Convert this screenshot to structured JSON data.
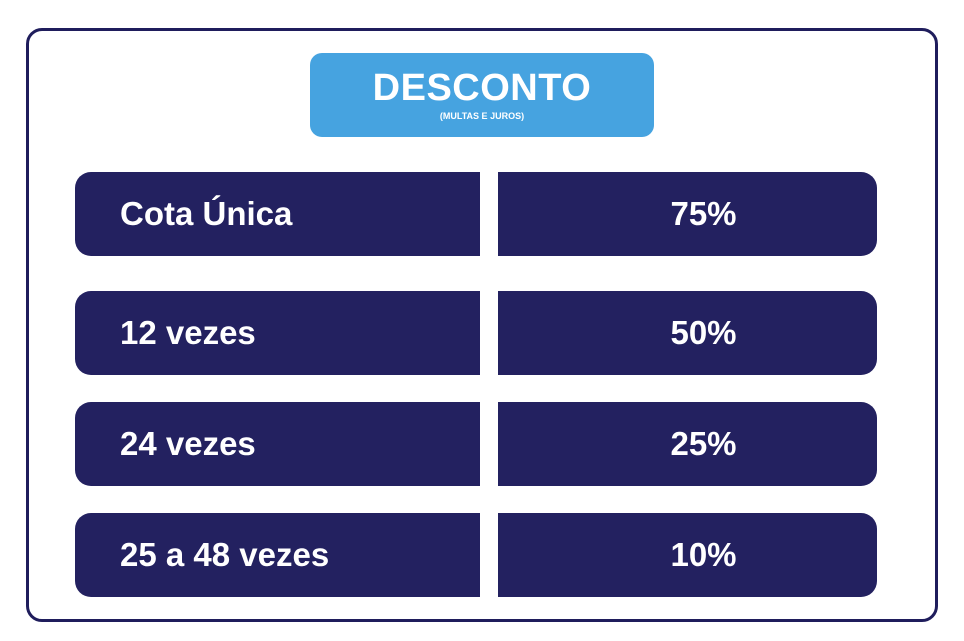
{
  "header": {
    "title": "DESCONTO",
    "subtitle": "(MULTAS E JUROS)"
  },
  "rows": [
    {
      "label": "Cota Única",
      "value": "75%"
    },
    {
      "label": "12 vezes",
      "value": "50%"
    },
    {
      "label": "24 vezes",
      "value": "25%"
    },
    {
      "label": "25 a 48 vezes",
      "value": "10%"
    }
  ],
  "colors": {
    "header_bg": "#46a3e0",
    "row_bg": "#232160",
    "border": "#1f1d5c",
    "text": "#ffffff"
  }
}
